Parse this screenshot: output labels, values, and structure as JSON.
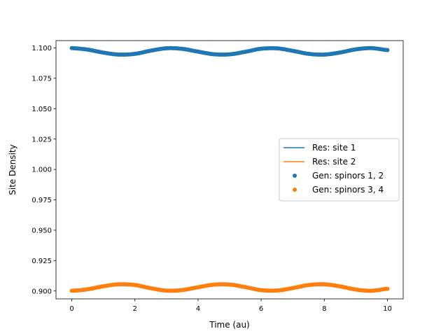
{
  "chart_data": {
    "type": "line",
    "title": "",
    "xlabel": "Time (au)",
    "ylabel": "Site Density",
    "xlim": [
      -0.5,
      10.5
    ],
    "ylim": [
      0.8935,
      1.106
    ],
    "x_ticks": [
      0,
      2,
      4,
      6,
      8,
      10
    ],
    "x_tick_labels": [
      "0",
      "2",
      "4",
      "6",
      "8",
      "10"
    ],
    "y_ticks": [
      0.9,
      0.925,
      0.95,
      0.975,
      1.0,
      1.025,
      1.05,
      1.075,
      1.1
    ],
    "y_tick_labels": [
      "0.900",
      "0.925",
      "0.950",
      "0.975",
      "1.000",
      "1.025",
      "1.050",
      "1.075",
      "1.100"
    ],
    "grid": false,
    "legend_position": "center-right",
    "colors": {
      "blue": "#1f77b4",
      "orange": "#ff7f0e"
    },
    "x": [
      0,
      0.5,
      1.0,
      1.5,
      2.0,
      2.5,
      3.0,
      3.5,
      4.0,
      4.5,
      5.0,
      5.5,
      6.0,
      6.5,
      7.0,
      7.5,
      8.0,
      8.5,
      9.0,
      9.5,
      10.0
    ],
    "series": [
      {
        "name": "Res: site 1",
        "kind": "line",
        "color": "#1f77b4",
        "values": [
          1.0998,
          1.0986,
          1.0961,
          1.0945,
          1.0951,
          1.0977,
          1.0997,
          1.0992,
          1.0969,
          1.0948,
          1.0947,
          1.0968,
          1.0993,
          1.0996,
          1.0976,
          1.0951,
          1.0945,
          1.0962,
          1.0988,
          1.0998,
          1.0982
        ]
      },
      {
        "name": "Res: site 2",
        "kind": "line",
        "color": "#ff7f0e",
        "values": [
          0.9002,
          0.9014,
          0.9039,
          0.9055,
          0.9049,
          0.9023,
          0.9003,
          0.9008,
          0.9031,
          0.9052,
          0.9053,
          0.9032,
          0.9007,
          0.9004,
          0.9024,
          0.9049,
          0.9055,
          0.9038,
          0.9012,
          0.9002,
          0.9018
        ]
      },
      {
        "name": "Gen: spinors 1, 2",
        "kind": "scatter",
        "color": "#1f77b4",
        "values": [
          1.0998,
          1.0986,
          1.0961,
          1.0945,
          1.0951,
          1.0977,
          1.0997,
          1.0992,
          1.0969,
          1.0948,
          1.0947,
          1.0968,
          1.0993,
          1.0996,
          1.0976,
          1.0951,
          1.0945,
          1.0962,
          1.0988,
          1.0998,
          1.0982
        ]
      },
      {
        "name": "Gen: spinors 3, 4",
        "kind": "scatter",
        "color": "#ff7f0e",
        "values": [
          0.9002,
          0.9014,
          0.9039,
          0.9055,
          0.9049,
          0.9023,
          0.9003,
          0.9008,
          0.9031,
          0.9052,
          0.9053,
          0.9032,
          0.9007,
          0.9004,
          0.9024,
          0.9049,
          0.9055,
          0.9038,
          0.9012,
          0.9002,
          0.9018
        ]
      }
    ]
  }
}
